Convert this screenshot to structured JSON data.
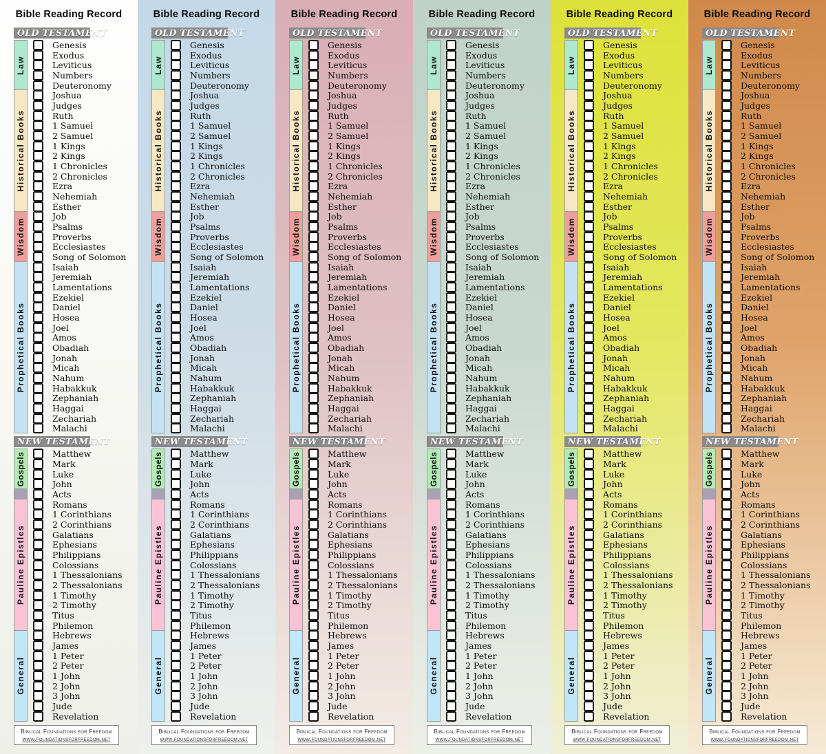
{
  "bookmark": {
    "title": "Bible Reading Record",
    "old_testament": {
      "header": "OLD TESTAMENT",
      "sections": [
        {
          "slug": "law",
          "label": "Law",
          "color": "#ade8cf",
          "books": [
            "Genesis",
            "Exodus",
            "Leviticus",
            "Numbers",
            "Deuteronomy"
          ]
        },
        {
          "slug": "historical-books",
          "label": "Historical Books",
          "color": "#f7e8c3",
          "books": [
            "Joshua",
            "Judges",
            "Ruth",
            "1 Samuel",
            "2 Samuel",
            "1 Kings",
            "2 Kings",
            "1 Chronicles",
            "2 Chronicles",
            "Ezra",
            "Nehemiah",
            "Esther"
          ]
        },
        {
          "slug": "wisdom",
          "label": "Wisdom",
          "color": "#ef9f9b",
          "books": [
            "Job",
            "Psalms",
            "Proverbs",
            "Ecclesiastes",
            "Song of Solomon"
          ]
        },
        {
          "slug": "prophetical-books",
          "label": "Prophetical Books",
          "color": "#c3e3f4",
          "books": [
            "Isaiah",
            "Jeremiah",
            "Lamentations",
            "Ezekiel",
            "Daniel",
            "Hosea",
            "Joel",
            "Amos",
            "Obadiah",
            "Jonah",
            "Micah",
            "Nahum",
            "Habakkuk",
            "Zephaniah",
            "Haggai",
            "Zechariah",
            "Malachi"
          ]
        }
      ]
    },
    "new_testament": {
      "header": "NEW TESTAMENT",
      "sections": [
        {
          "slug": "gospels",
          "label": "Gospels",
          "color": "#b2ecb4",
          "books": [
            "Matthew",
            "Mark",
            "Luke",
            "John"
          ]
        },
        {
          "slug": "acts",
          "label": "",
          "color": "#a9a2b4",
          "books": [
            "Acts"
          ]
        },
        {
          "slug": "pauline-epistles",
          "label": "Pauline Epistles",
          "color": "#fac3d5",
          "books": [
            "Romans",
            "1 Corinthians",
            "2 Corinthians",
            "Galatians",
            "Ephesians",
            "Philippians",
            "Colossians",
            "1 Thessalonians",
            "2 Thessalonians",
            "1 Timothy",
            "2 Timothy",
            "Titus",
            "Philemon"
          ]
        },
        {
          "slug": "general",
          "label": "General",
          "color": "#c0e6f8",
          "books": [
            "Hebrews",
            "James",
            "1 Peter",
            "2 Peter",
            "1 John",
            "2 John",
            "3 John",
            "Jude",
            "Revelation"
          ]
        }
      ]
    },
    "footer": {
      "line1": "Biblical Foundations for Freedom",
      "line2": "www.foundationsforfreedom.net"
    },
    "colors": {
      "testament_header_bg": "#8a8a8a",
      "testament_header_text": "#ffffff",
      "checkbox_border": "#131313",
      "checkbox_fill": "#ffffff"
    },
    "checkboxes_checked": false
  },
  "columns": [
    {
      "theme": "white",
      "bg_top": "#fefefe",
      "bg_mid": "#f8f8f4",
      "bg_bottom": "#efefe9"
    },
    {
      "theme": "blue",
      "bg_top": "#c4d9e8",
      "bg_mid": "#cddce6",
      "bg_bottom": "#eef0ec"
    },
    {
      "theme": "rose",
      "bg_top": "#d9aeb6",
      "bg_mid": "#dfc0c2",
      "bg_bottom": "#f2ece5"
    },
    {
      "theme": "sage",
      "bg_top": "#bfd3c9",
      "bg_mid": "#c9d8cf",
      "bg_bottom": "#edefe9"
    },
    {
      "theme": "yellow",
      "bg_top": "#dee13a",
      "bg_mid": "#e4e75e",
      "bg_bottom": "#efefd8"
    },
    {
      "theme": "orange",
      "bg_top": "#d0894a",
      "bg_mid": "#dfa369",
      "bg_bottom": "#f6ead6"
    }
  ]
}
